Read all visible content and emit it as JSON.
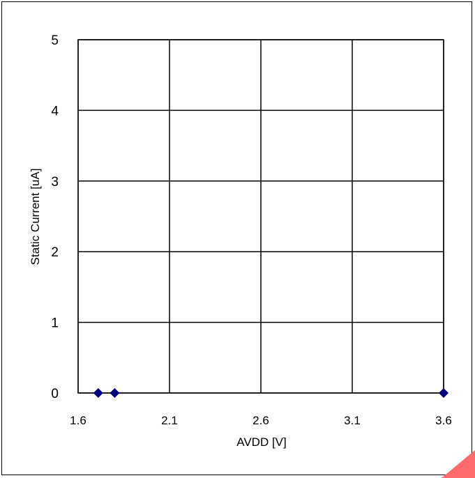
{
  "chart_data": {
    "type": "scatter",
    "title": "",
    "xlabel": "AVDD [V]",
    "ylabel": "Static Current [uA]",
    "xlim": [
      1.6,
      3.6
    ],
    "ylim": [
      0,
      5
    ],
    "x_ticks": [
      1.6,
      2.1,
      2.6,
      3.1,
      3.6
    ],
    "y_ticks": [
      0,
      1,
      2,
      3,
      4,
      5
    ],
    "x_tick_labels": [
      "1.6",
      "2.1",
      "2.6",
      "3.1",
      "3.6"
    ],
    "y_tick_labels": [
      "0",
      "1",
      "2",
      "3",
      "4",
      "5"
    ],
    "grid": true,
    "legend": "none",
    "series": [
      {
        "marker": "diamond",
        "color": "#000080",
        "points": [
          {
            "x": 1.71,
            "y": 0
          },
          {
            "x": 1.8,
            "y": 0
          },
          {
            "x": 3.6,
            "y": 0
          }
        ]
      }
    ]
  },
  "watermark": {
    "color": "#ff6b6b"
  }
}
